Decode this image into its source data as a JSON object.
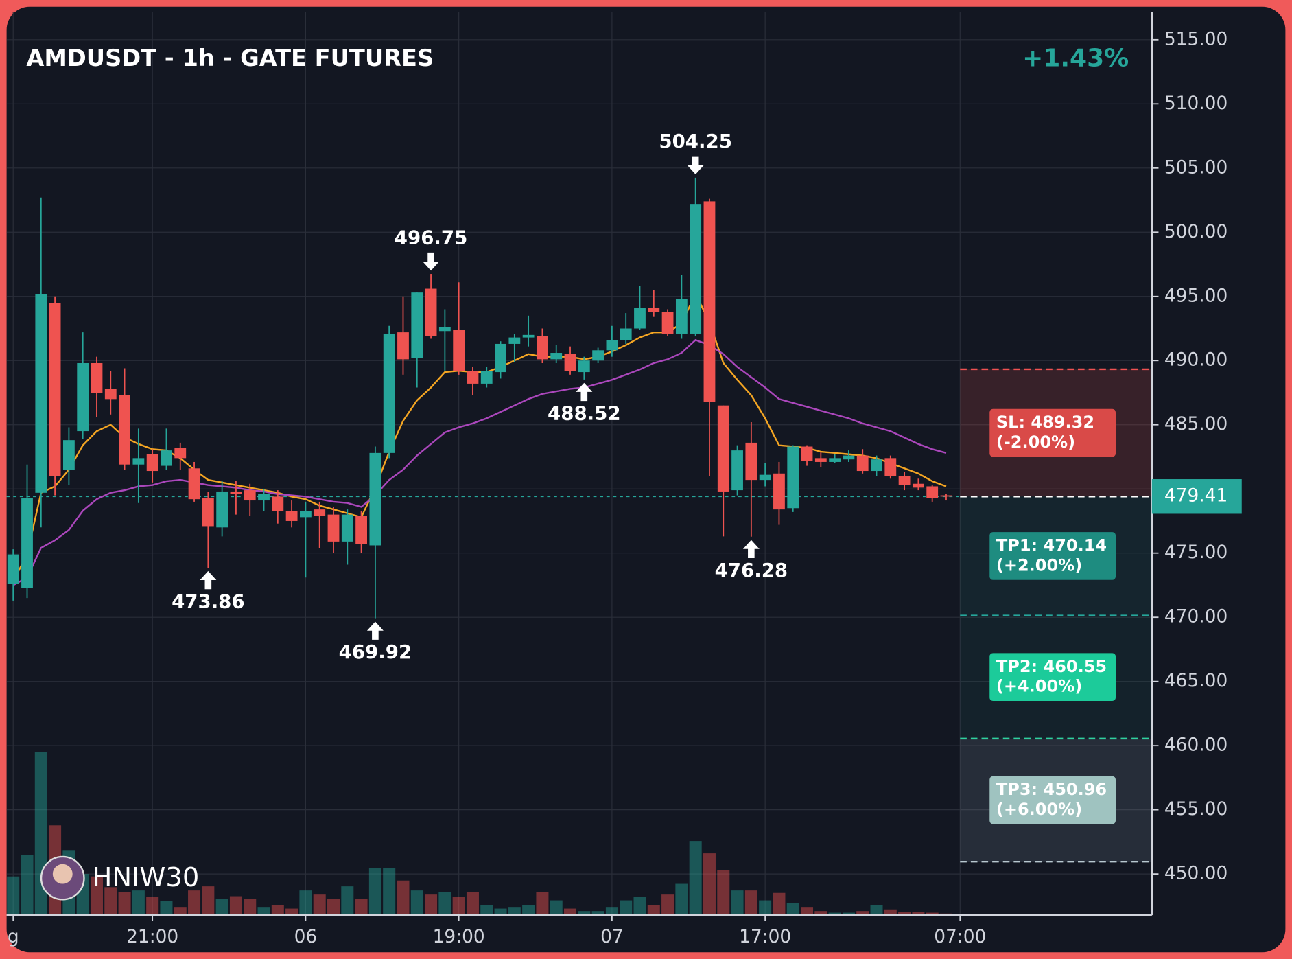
{
  "chart_data": {
    "type": "candlestick",
    "title": "AMDUSDT - 1h - GATE FUTURES",
    "change": "+1.43%",
    "watermark": "HNIW30",
    "categories": [
      "g",
      null,
      null,
      null,
      null,
      null,
      null,
      null,
      null,
      null,
      "21:00",
      null,
      null,
      null,
      null,
      null,
      null,
      null,
      null,
      null,
      null,
      "06",
      null,
      null,
      null,
      null,
      null,
      null,
      null,
      null,
      null,
      null,
      "19:00",
      null,
      null,
      null,
      null,
      null,
      null,
      null,
      null,
      null,
      null,
      "07",
      null,
      null,
      null,
      null,
      null,
      null,
      null,
      null,
      null,
      null,
      "17:00",
      null,
      null,
      null,
      null,
      null,
      null,
      null,
      null,
      null,
      null,
      null,
      null,
      null,
      "07:00"
    ],
    "open": [
      472.6,
      472.3,
      479.7,
      494.5,
      481.5,
      484.5,
      489.8,
      487.8,
      487.3,
      481.9,
      482.7,
      481.8,
      483.2,
      481.6,
      479.3,
      477.0,
      479.8,
      479.9,
      479.1,
      479.4,
      478.3,
      477.8,
      478.4,
      478.0,
      475.9,
      477.9,
      475.6,
      482.8,
      492.2,
      490.2,
      495.6,
      492.3,
      492.4,
      489.2,
      488.2,
      489.1,
      491.3,
      491.8,
      491.9,
      490.1,
      490.5,
      489.1,
      490.0,
      490.8,
      491.6,
      492.5,
      494.1,
      493.8,
      492.1,
      492.1,
      502.4,
      486.5,
      479.9,
      483.6,
      480.7,
      481.2,
      478.5,
      483.3,
      482.4,
      482.1,
      482.3,
      482.6,
      481.4,
      482.4,
      481.0,
      480.4,
      480.2,
      479.5,
      null
    ],
    "high": [
      475.3,
      481.9,
      502.7,
      495.0,
      484.8,
      492.2,
      490.3,
      489.2,
      489.4,
      484.7,
      483.1,
      484.7,
      483.6,
      482.1,
      479.8,
      480.6,
      480.6,
      480.4,
      480.0,
      479.9,
      479.1,
      479.0,
      479.0,
      478.6,
      478.4,
      478.3,
      483.3,
      492.7,
      495.0,
      495.3,
      496.75,
      494.0,
      496.1,
      489.5,
      489.5,
      491.5,
      492.1,
      493.5,
      492.5,
      491.2,
      491.1,
      490.3,
      491.0,
      492.7,
      493.7,
      495.8,
      495.5,
      494.0,
      496.7,
      504.25,
      502.6,
      486.5,
      483.4,
      485.2,
      482.0,
      482.1,
      483.4,
      483.4,
      482.9,
      482.7,
      483.0,
      483.1,
      482.6,
      482.6,
      481.3,
      480.8,
      480.3,
      479.6,
      null
    ],
    "low": [
      471.3,
      471.5,
      477.0,
      479.5,
      480.3,
      483.9,
      485.6,
      485.8,
      481.5,
      478.9,
      480.5,
      481.5,
      481.5,
      479.0,
      473.86,
      476.3,
      478.0,
      477.9,
      478.3,
      477.3,
      477.0,
      473.1,
      475.4,
      475.0,
      474.1,
      475.0,
      469.92,
      482.4,
      488.9,
      487.9,
      491.7,
      489.2,
      488.9,
      487.3,
      487.9,
      488.6,
      489.9,
      491.1,
      489.8,
      489.8,
      488.9,
      488.52,
      489.8,
      490.3,
      491.3,
      492.4,
      493.4,
      491.9,
      491.7,
      491.9,
      481.0,
      476.3,
      479.5,
      476.28,
      480.2,
      477.2,
      478.2,
      481.8,
      481.7,
      482.0,
      482.1,
      481.2,
      481.0,
      480.8,
      479.9,
      479.9,
      479.0,
      479.1,
      null
    ],
    "close": [
      474.9,
      479.3,
      495.2,
      481.0,
      483.8,
      489.8,
      487.5,
      487.0,
      481.9,
      482.4,
      481.4,
      483.0,
      482.4,
      479.2,
      477.1,
      479.8,
      479.6,
      479.1,
      479.6,
      478.3,
      477.5,
      478.3,
      477.9,
      475.9,
      478.0,
      475.7,
      482.8,
      492.1,
      490.1,
      495.3,
      491.9,
      492.6,
      489.2,
      488.2,
      489.2,
      491.3,
      491.8,
      492.0,
      490.1,
      490.6,
      489.2,
      490.0,
      490.8,
      491.6,
      492.5,
      494.1,
      493.8,
      492.1,
      494.8,
      502.2,
      486.8,
      479.8,
      483.0,
      480.7,
      481.1,
      478.4,
      483.3,
      482.2,
      482.1,
      482.4,
      482.6,
      481.4,
      482.3,
      481.0,
      480.3,
      480.1,
      479.3,
      479.41,
      null
    ],
    "volume": [
      47,
      73,
      198,
      109,
      79,
      50,
      47,
      34,
      28,
      30,
      22,
      17,
      10,
      30,
      35,
      20,
      23,
      20,
      10,
      12,
      8,
      30,
      25,
      20,
      35,
      20,
      57,
      57,
      42,
      30,
      25,
      28,
      22,
      28,
      12,
      8,
      10,
      12,
      28,
      18,
      8,
      5,
      5,
      10,
      18,
      22,
      12,
      25,
      38,
      90,
      75,
      55,
      30,
      30,
      18,
      27,
      15,
      10,
      5,
      3,
      3,
      5,
      12,
      7,
      4,
      4,
      3,
      2,
      null
    ],
    "overlays": [
      {
        "color": "#f5a623",
        "values": [
          472.8,
          474.9,
          479.7,
          480.2,
          481.5,
          483.4,
          484.5,
          485.0,
          484.0,
          483.5,
          483.1,
          483.0,
          482.4,
          481.5,
          480.7,
          480.5,
          480.3,
          480.1,
          479.9,
          479.7,
          479.4,
          479.2,
          478.7,
          478.4,
          478.1,
          477.8,
          480.1,
          482.9,
          485.3,
          486.9,
          487.9,
          489.1,
          489.2,
          489.1,
          489.1,
          489.5,
          490.0,
          490.5,
          490.3,
          490.3,
          490.3,
          490.1,
          490.3,
          490.7,
          491.2,
          491.8,
          492.2,
          492.2,
          492.9,
          495.2,
          493.0,
          489.8,
          488.5,
          487.3,
          485.5,
          483.4,
          483.3,
          483.2,
          482.9,
          482.8,
          482.7,
          482.6,
          482.4,
          482.0,
          481.6,
          481.2,
          480.6,
          480.2,
          null
        ]
      },
      {
        "color": "#ab47bc",
        "values": [
          472.5,
          473.1,
          475.4,
          476.0,
          476.8,
          478.3,
          479.2,
          479.7,
          479.9,
          480.2,
          480.3,
          480.6,
          480.7,
          480.5,
          480.3,
          480.2,
          480.1,
          479.9,
          479.8,
          479.6,
          479.5,
          479.4,
          479.2,
          479.0,
          478.9,
          478.6,
          479.5,
          480.7,
          481.5,
          482.6,
          483.5,
          484.4,
          484.8,
          485.1,
          485.5,
          486.0,
          486.5,
          487.0,
          487.4,
          487.6,
          487.8,
          487.9,
          488.2,
          488.5,
          488.9,
          489.3,
          489.8,
          490.1,
          490.6,
          491.6,
          491.2,
          490.5,
          489.5,
          488.7,
          487.9,
          487.0,
          486.7,
          486.4,
          486.1,
          485.8,
          485.5,
          485.1,
          484.8,
          484.5,
          484.0,
          483.5,
          483.1,
          482.8,
          null
        ]
      }
    ],
    "up_color": "#26a69a",
    "down_color": "#ef5350",
    "peaks": [
      496.75,
      504.25
    ],
    "troughs": [
      473.86,
      469.92,
      488.52,
      476.28
    ],
    "last_price": 479.41,
    "levels": [
      {
        "label": "SL: 489.32",
        "detail": "(-2.00%)",
        "value": 489.32,
        "color": "#f05252",
        "zone": "rgba(239,83,80,0.17)",
        "box": "#d94a48"
      },
      {
        "label": "TP1: 470.14",
        "detail": "(+2.00%)",
        "value": 470.14,
        "color": "#26a69a",
        "zone": "rgba(38,166,154,0.10)",
        "box": "#1e8c80"
      },
      {
        "label": "TP2: 460.55",
        "detail": "(+4.00%)",
        "value": 460.55,
        "color": "#2ed3a0",
        "zone": "rgba(38,166,154,0.08)",
        "box": "#1ccb9a"
      },
      {
        "label": "TP3: 450.96",
        "detail": "(+6.00%)",
        "value": 450.96,
        "color": "#b8c8d0",
        "zone": "rgba(140,160,180,0.16)",
        "box": "#9fc3c0"
      }
    ],
    "ylim": [
      450,
      515
    ],
    "yticks": [
      {
        "value": 450,
        "label": "450.00"
      },
      {
        "value": 455,
        "label": "455.00"
      },
      {
        "value": 460,
        "label": "460.00"
      },
      {
        "value": 465,
        "label": "465.00"
      },
      {
        "value": 470,
        "label": "470.00"
      },
      {
        "value": 475,
        "label": "475.00"
      },
      {
        "value": 480,
        "label": "480.00"
      },
      {
        "value": 485,
        "label": "485.00"
      },
      {
        "value": 490,
        "label": "490.00"
      },
      {
        "value": 495,
        "label": "495.00"
      },
      {
        "value": 500,
        "label": "500.00"
      },
      {
        "value": 505,
        "label": "505.00"
      },
      {
        "value": 510,
        "label": "510.00"
      },
      {
        "value": 515,
        "label": "515.00"
      }
    ],
    "grid": true
  }
}
